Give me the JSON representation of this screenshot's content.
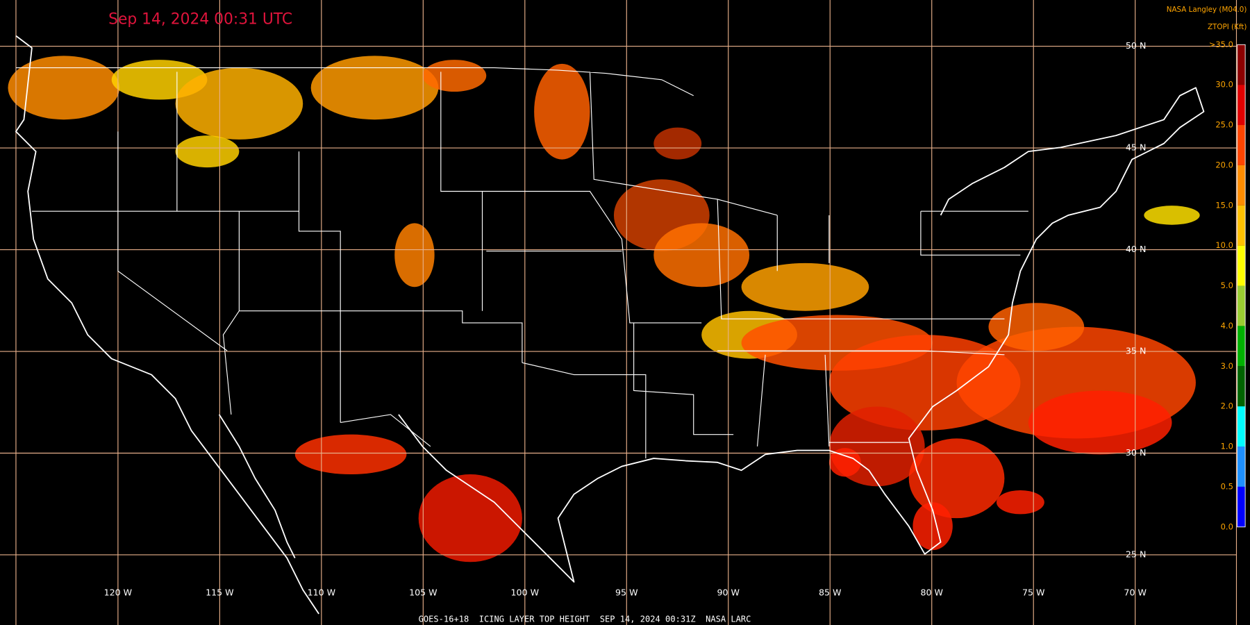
{
  "header": {
    "timestamp": "Sep 14, 2024 00:31 UTC",
    "source": "NASA Langley (M04.0)"
  },
  "legend": {
    "title": "ZTOPI (Kft)",
    "labels": [
      ">35.0",
      "30.0",
      "25.0",
      "20.0",
      "15.0",
      "10.0",
      "5.0",
      "4.0",
      "3.0",
      "2.0",
      "1.0",
      "0.5",
      "0.0"
    ]
  },
  "grid": {
    "lat_labels": [
      "50 N",
      "45 N",
      "40 N",
      "35 N",
      "30 N",
      "25 N"
    ],
    "lon_labels": [
      "120 W",
      "115 W",
      "110 W",
      "105 W",
      "100 W",
      "95 W",
      "90 W",
      "85 W",
      "80 W",
      "75 W",
      "70 W"
    ]
  },
  "footer": {
    "caption": "GOES-16+18  ICING LAYER TOP HEIGHT  SEP 14, 2024 00:31Z  NASA LARC"
  }
}
